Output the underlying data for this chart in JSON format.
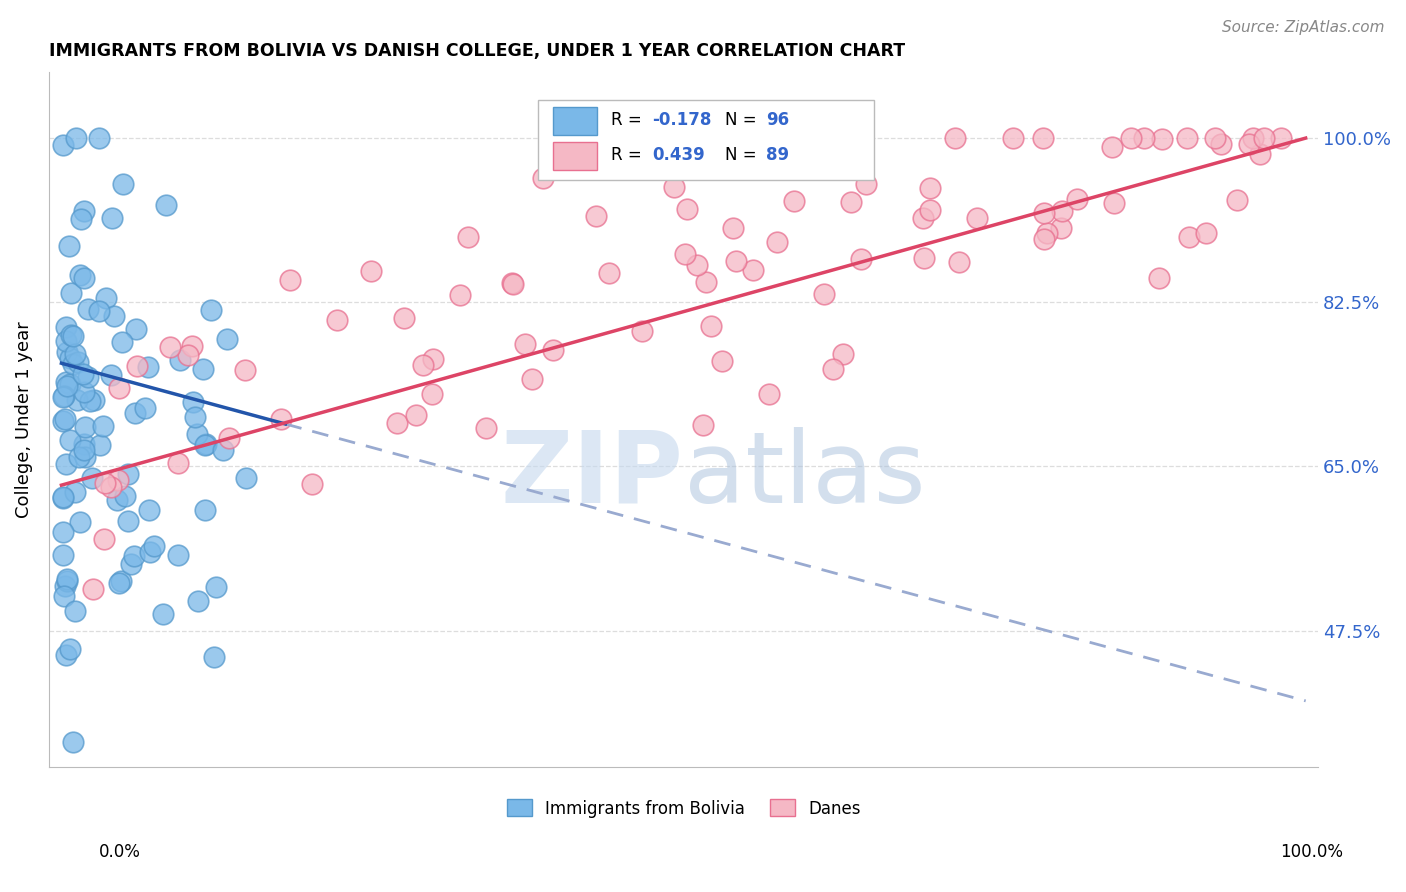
{
  "title": "IMMIGRANTS FROM BOLIVIA VS DANISH COLLEGE, UNDER 1 YEAR CORRELATION CHART",
  "source": "Source: ZipAtlas.com",
  "ylabel": "College, Under 1 year",
  "yticks": [
    47.5,
    65.0,
    82.5,
    100.0
  ],
  "ytick_labels": [
    "47.5%",
    "65.0%",
    "82.5%",
    "100.0%"
  ],
  "xlim": [
    0.0,
    100.0
  ],
  "ylim": [
    33.0,
    107.0
  ],
  "blue_color": "#7ab8e8",
  "blue_edge": "#5599cc",
  "pink_color": "#f5b8c5",
  "pink_edge": "#e87090",
  "trend_blue_solid_color": "#2255aa",
  "trend_blue_dash_color": "#99aad0",
  "trend_pink_color": "#dd4466",
  "blue_line": {
    "x0": 0.0,
    "y0": 76.0,
    "x1": 100.0,
    "y1": 40.0,
    "solid_end_x": 18.0
  },
  "pink_line": {
    "x0": 0.0,
    "y0": 63.0,
    "x1": 100.0,
    "y1": 100.0
  },
  "legend_R_blue": "-0.178",
  "legend_N_blue": "96",
  "legend_R_pink": "0.439",
  "legend_N_pink": "89",
  "watermark_color": "#c5d8ee",
  "grid_color": "#dddddd",
  "grid_style": "--"
}
